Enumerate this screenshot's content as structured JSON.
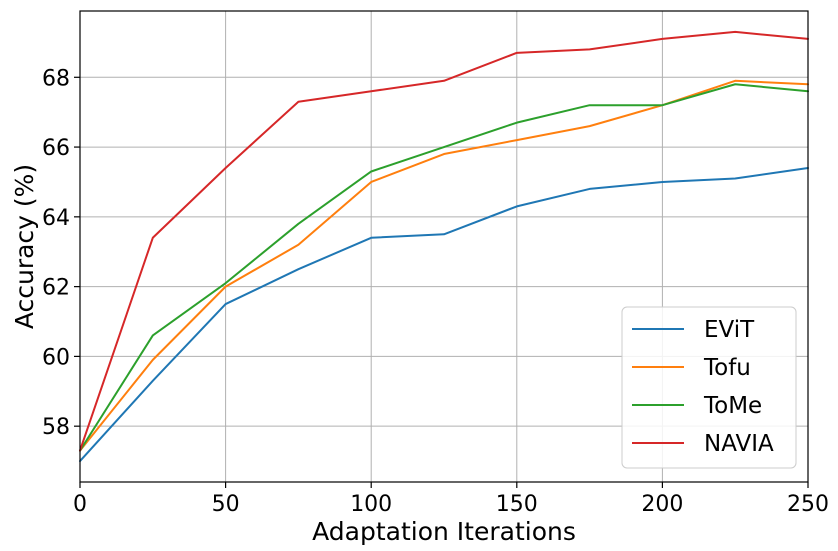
{
  "chart_data": {
    "type": "line",
    "title": "",
    "xlabel": "Adaptation Iterations",
    "ylabel": "Accuracy (%)",
    "xlim": [
      0,
      250
    ],
    "ylim": [
      56.4,
      69.9
    ],
    "x_ticks": [
      0,
      50,
      100,
      150,
      200,
      250
    ],
    "y_ticks": [
      58,
      60,
      62,
      64,
      66,
      68
    ],
    "grid": true,
    "legend_position": "lower-right",
    "x": [
      0,
      25,
      50,
      75,
      100,
      125,
      150,
      175,
      200,
      225,
      250
    ],
    "series": [
      {
        "name": "EViT",
        "color": "#1f77b4",
        "values": [
          57.0,
          59.3,
          61.5,
          62.5,
          63.4,
          63.5,
          64.3,
          64.8,
          65.0,
          65.1,
          65.4
        ]
      },
      {
        "name": "Tofu",
        "color": "#ff7f0e",
        "values": [
          57.3,
          59.9,
          62.0,
          63.2,
          65.0,
          65.8,
          66.2,
          66.6,
          67.2,
          67.9,
          67.8
        ]
      },
      {
        "name": "ToMe",
        "color": "#2ca02c",
        "values": [
          57.3,
          60.6,
          62.1,
          63.8,
          65.3,
          66.0,
          66.7,
          67.2,
          67.2,
          67.8,
          67.6
        ]
      },
      {
        "name": "NAVIA",
        "color": "#d62728",
        "values": [
          57.3,
          63.4,
          65.4,
          67.3,
          67.6,
          67.9,
          68.7,
          68.8,
          69.1,
          69.3,
          69.1
        ]
      }
    ]
  }
}
